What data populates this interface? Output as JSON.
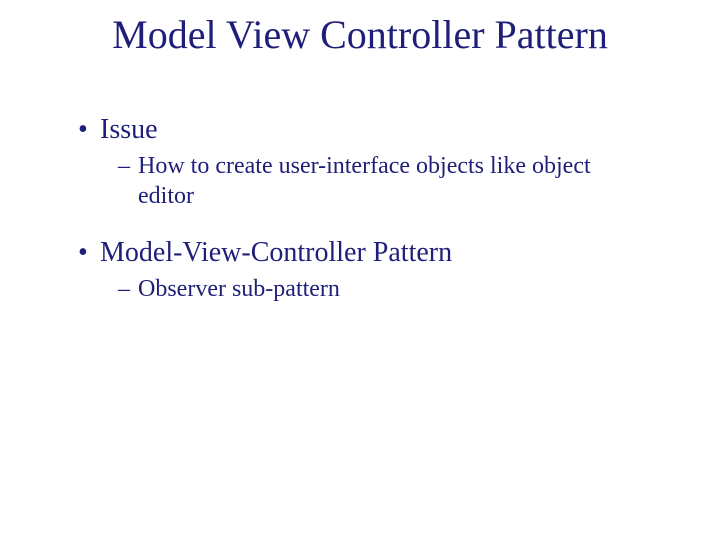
{
  "colors": {
    "text": "#1f1f7a",
    "background": "#ffffff"
  },
  "typography": {
    "family": "Times New Roman",
    "title_fontsize": 40,
    "l1_fontsize": 28,
    "l2_fontsize": 24
  },
  "slide": {
    "title": "Model View Controller Pattern",
    "items": [
      {
        "bullet": "•",
        "text": "Issue",
        "sub": [
          {
            "dash": "–",
            "text": "How to create user-interface objects like object editor"
          }
        ]
      },
      {
        "bullet": "•",
        "text": "Model-View-Controller Pattern",
        "sub": [
          {
            "dash": "–",
            "text": "Observer sub-pattern"
          }
        ]
      }
    ]
  }
}
